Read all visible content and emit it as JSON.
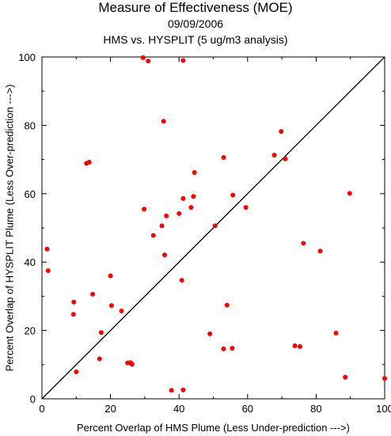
{
  "chart_data": {
    "type": "scatter",
    "title": "Measure of Effectiveness (MOE)",
    "subtitle_date": "09/09/2006",
    "subtitle_analysis": "HMS vs. HYSPLIT  (5 ug/m3 analysis)",
    "xlabel": "Percent Overlap of HMS Plume (Less Under-prediction --->)",
    "ylabel": "Percent Overlap of HYSPLIT Plume (Less Over-prediction --->)",
    "xlim": [
      0,
      100
    ],
    "ylim": [
      0,
      100
    ],
    "xticks": [
      "0",
      "20",
      "40",
      "60",
      "80",
      "100"
    ],
    "yticks": [
      "0",
      "20",
      "40",
      "60",
      "80",
      "100"
    ],
    "reference_line": "diagonal y = x",
    "grid": false,
    "point_color": "#ff0000",
    "line_color": "#000000",
    "points": [
      {
        "x": 29.5,
        "y": 99.8
      },
      {
        "x": 31.0,
        "y": 98.8
      },
      {
        "x": 41.2,
        "y": 99.0
      },
      {
        "x": 35.5,
        "y": 81.2
      },
      {
        "x": 69.8,
        "y": 78.2
      },
      {
        "x": 67.8,
        "y": 71.3
      },
      {
        "x": 71.0,
        "y": 70.2
      },
      {
        "x": 53.0,
        "y": 70.6
      },
      {
        "x": 13.0,
        "y": 68.9
      },
      {
        "x": 13.8,
        "y": 69.2
      },
      {
        "x": 44.5,
        "y": 66.2
      },
      {
        "x": 89.8,
        "y": 60.1
      },
      {
        "x": 55.7,
        "y": 59.6
      },
      {
        "x": 44.2,
        "y": 59.2
      },
      {
        "x": 41.2,
        "y": 58.6
      },
      {
        "x": 59.5,
        "y": 56.0
      },
      {
        "x": 43.5,
        "y": 56.0
      },
      {
        "x": 29.8,
        "y": 55.5
      },
      {
        "x": 36.3,
        "y": 53.5
      },
      {
        "x": 40.0,
        "y": 54.2
      },
      {
        "x": 35.0,
        "y": 50.6
      },
      {
        "x": 50.5,
        "y": 50.6
      },
      {
        "x": 32.5,
        "y": 47.8
      },
      {
        "x": 76.3,
        "y": 45.5
      },
      {
        "x": 1.5,
        "y": 43.8
      },
      {
        "x": 81.2,
        "y": 43.2
      },
      {
        "x": 35.8,
        "y": 42.1
      },
      {
        "x": 1.8,
        "y": 37.5
      },
      {
        "x": 20.0,
        "y": 36.0
      },
      {
        "x": 40.8,
        "y": 34.7
      },
      {
        "x": 14.8,
        "y": 30.6
      },
      {
        "x": 9.3,
        "y": 28.3
      },
      {
        "x": 20.3,
        "y": 27.3
      },
      {
        "x": 54.0,
        "y": 27.4
      },
      {
        "x": 23.2,
        "y": 25.7
      },
      {
        "x": 9.2,
        "y": 24.7
      },
      {
        "x": 17.3,
        "y": 19.4
      },
      {
        "x": 49.0,
        "y": 19.0
      },
      {
        "x": 85.8,
        "y": 19.2
      },
      {
        "x": 73.8,
        "y": 15.5
      },
      {
        "x": 75.3,
        "y": 15.3
      },
      {
        "x": 55.5,
        "y": 14.8
      },
      {
        "x": 53.0,
        "y": 14.6
      },
      {
        "x": 16.8,
        "y": 11.7
      },
      {
        "x": 25.0,
        "y": 10.5
      },
      {
        "x": 25.8,
        "y": 10.6
      },
      {
        "x": 26.3,
        "y": 10.1
      },
      {
        "x": 10.0,
        "y": 7.9
      },
      {
        "x": 88.5,
        "y": 6.3
      },
      {
        "x": 100.0,
        "y": 6.0
      },
      {
        "x": 41.2,
        "y": 2.6
      },
      {
        "x": 37.8,
        "y": 2.5
      }
    ]
  }
}
